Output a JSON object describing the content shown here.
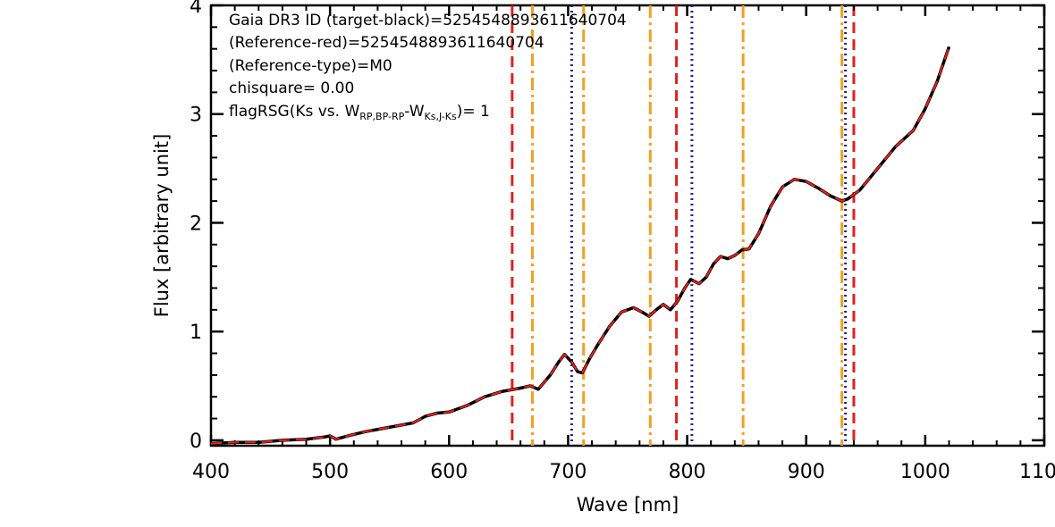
{
  "chart_data": {
    "type": "line",
    "xlabel": "Wave [nm]",
    "ylabel": "Flux [arbitrary unit]",
    "xlim": [
      400,
      1100
    ],
    "ylim": [
      -0.05,
      4.0
    ],
    "x_ticks": [
      "400",
      "500",
      "600",
      "700",
      "800",
      "900",
      "1000",
      "1100"
    ],
    "y_ticks": [
      "0",
      "1",
      "2",
      "3",
      "4"
    ],
    "annotations": {
      "line1": "Gaia DR3 ID (target-black)=5254548893611640704",
      "line2": "(Reference-red)=5254548893611640704",
      "line3": "(Reference-type)=M0",
      "line4": "chisquare= 0.00",
      "line5_prefix": "flagRSG(Ks vs. W",
      "line5_sub1": "RP,BP-RP",
      "line5_mid": "-W",
      "line5_sub2": "Ks,J-Ks",
      "line5_suffix": ")= 1"
    },
    "series": [
      {
        "color": "#000000",
        "style": "solid",
        "x": [
          400,
          420,
          440,
          460,
          480,
          495,
          500,
          505,
          515,
          530,
          545,
          560,
          570,
          580,
          590,
          600,
          615,
          630,
          645,
          660,
          668,
          675,
          685,
          692,
          697,
          703,
          708,
          712,
          718,
          725,
          735,
          745,
          755,
          762,
          768,
          774,
          780,
          786,
          792,
          798,
          803,
          810,
          816,
          822,
          828,
          834,
          840,
          846,
          852,
          860,
          870,
          880,
          890,
          900,
          910,
          920,
          930,
          935,
          945,
          960,
          975,
          990,
          1000,
          1010,
          1020
        ],
        "y": [
          -0.03,
          -0.02,
          -0.02,
          0.0,
          0.01,
          0.03,
          0.04,
          0.01,
          0.04,
          0.08,
          0.11,
          0.14,
          0.16,
          0.22,
          0.25,
          0.26,
          0.32,
          0.4,
          0.45,
          0.48,
          0.5,
          0.47,
          0.6,
          0.72,
          0.79,
          0.72,
          0.63,
          0.62,
          0.75,
          0.88,
          1.05,
          1.18,
          1.22,
          1.18,
          1.14,
          1.2,
          1.25,
          1.2,
          1.28,
          1.4,
          1.48,
          1.44,
          1.5,
          1.62,
          1.69,
          1.67,
          1.7,
          1.75,
          1.76,
          1.9,
          2.15,
          2.33,
          2.4,
          2.38,
          2.32,
          2.25,
          2.2,
          2.22,
          2.3,
          2.5,
          2.7,
          2.85,
          3.05,
          3.3,
          3.62
        ]
      },
      {
        "color": "#e02020",
        "style": "dashed",
        "x": [
          400,
          420,
          440,
          460,
          480,
          495,
          500,
          505,
          515,
          530,
          545,
          560,
          570,
          580,
          590,
          600,
          615,
          630,
          645,
          660,
          668,
          675,
          685,
          692,
          697,
          703,
          708,
          712,
          718,
          725,
          735,
          745,
          755,
          762,
          768,
          774,
          780,
          786,
          792,
          798,
          803,
          810,
          816,
          822,
          828,
          834,
          840,
          846,
          852,
          860,
          870,
          880,
          890,
          900,
          910,
          920,
          930,
          935,
          945,
          960,
          975,
          990,
          1000,
          1010,
          1020
        ],
        "y": [
          -0.03,
          -0.02,
          -0.02,
          0.0,
          0.01,
          0.03,
          0.04,
          0.01,
          0.04,
          0.08,
          0.11,
          0.14,
          0.16,
          0.22,
          0.25,
          0.26,
          0.32,
          0.4,
          0.45,
          0.48,
          0.5,
          0.47,
          0.6,
          0.72,
          0.79,
          0.72,
          0.63,
          0.62,
          0.75,
          0.88,
          1.05,
          1.18,
          1.22,
          1.18,
          1.14,
          1.2,
          1.25,
          1.2,
          1.28,
          1.4,
          1.48,
          1.44,
          1.5,
          1.62,
          1.69,
          1.67,
          1.7,
          1.75,
          1.76,
          1.9,
          2.15,
          2.33,
          2.4,
          2.38,
          2.32,
          2.25,
          2.2,
          2.22,
          2.3,
          2.5,
          2.7,
          2.85,
          3.05,
          3.3,
          3.62
        ]
      }
    ],
    "vlines": [
      {
        "x": 653,
        "color": "#e02020",
        "style": "dashed"
      },
      {
        "x": 791,
        "color": "#e02020",
        "style": "dashed"
      },
      {
        "x": 940,
        "color": "#e02020",
        "style": "dashed"
      },
      {
        "x": 670,
        "color": "#f0a020",
        "style": "dashdot"
      },
      {
        "x": 713,
        "color": "#f0a020",
        "style": "dashdot"
      },
      {
        "x": 769,
        "color": "#f0a020",
        "style": "dashdot"
      },
      {
        "x": 847,
        "color": "#f0a020",
        "style": "dashdot"
      },
      {
        "x": 930,
        "color": "#f0a020",
        "style": "dashdot"
      },
      {
        "x": 703,
        "color": "#2020a0",
        "style": "dotted"
      },
      {
        "x": 804,
        "color": "#2020a0",
        "style": "dotted"
      },
      {
        "x": 933,
        "color": "#2020a0",
        "style": "dotted"
      }
    ],
    "grid": false
  }
}
